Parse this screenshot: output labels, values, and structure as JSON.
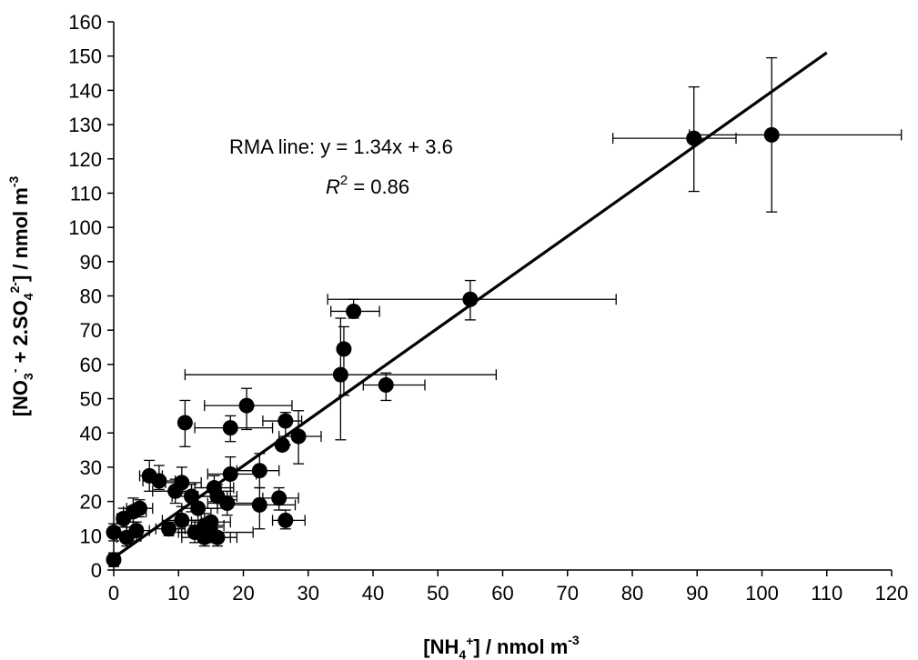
{
  "chart_data": {
    "type": "scatter",
    "xlabel": {
      "prefix": "[NH",
      "sub": "4",
      "sup": "+",
      "suffix": "] / nmol m",
      "unit_sup": "-3"
    },
    "ylabel": {
      "p1": "[NO",
      "sub1": "3",
      "sup1": "-",
      "p2": " + 2.SO",
      "sub2": "4",
      "sup2": "2-",
      "p3": "] / nmol m",
      "unit_sup": "-3"
    },
    "xlim": [
      0,
      120
    ],
    "ylim": [
      0,
      160
    ],
    "x_ticks": [
      "0",
      "10",
      "20",
      "30",
      "40",
      "50",
      "60",
      "70",
      "80",
      "90",
      "100",
      "110",
      "120"
    ],
    "y_ticks": [
      "0",
      "10",
      "20",
      "30",
      "40",
      "50",
      "60",
      "70",
      "80",
      "90",
      "100",
      "110",
      "120",
      "130",
      "140",
      "150",
      "160"
    ],
    "grid": false,
    "annotation": {
      "line1": "RMA line:  y = 1.34x + 3.6",
      "r_var": "R",
      "r_sup": "2",
      "r_rest": " = 0.86"
    },
    "fit_line": {
      "slope": 1.34,
      "intercept": 3.6,
      "x_range": [
        0,
        110
      ]
    },
    "points": [
      {
        "x": 101.5,
        "y": 127.0,
        "xerr": [
          88.8,
          121.5
        ],
        "yerr": [
          104.5,
          149.5
        ]
      },
      {
        "x": 89.5,
        "y": 126.0,
        "xerr": [
          77.0,
          96.0
        ],
        "yerr": [
          110.5,
          141.0
        ]
      },
      {
        "x": 55.0,
        "y": 79.0,
        "xerr": [
          33.0,
          77.5
        ],
        "yerr": [
          73.0,
          84.5
        ]
      },
      {
        "x": 37.0,
        "y": 75.5,
        "xerr": [
          33.5,
          41.0
        ],
        "yerr": [
          73.5,
          79.0
        ]
      },
      {
        "x": 35.5,
        "y": 64.5,
        "xerr": null,
        "yerr": [
          51.0,
          71.0
        ]
      },
      {
        "x": 35.0,
        "y": 57.0,
        "xerr": [
          11.0,
          59.0
        ],
        "yerr": [
          38.0,
          73.5
        ]
      },
      {
        "x": 42.0,
        "y": 54.0,
        "xerr": [
          38.5,
          48.0
        ],
        "yerr": [
          49.5,
          57.5
        ]
      },
      {
        "x": 20.5,
        "y": 48.0,
        "xerr": [
          14.0,
          27.5
        ],
        "yerr": [
          41.0,
          53.0
        ]
      },
      {
        "x": 11.0,
        "y": 43.0,
        "xerr": null,
        "yerr": [
          36.0,
          49.5
        ]
      },
      {
        "x": 26.5,
        "y": 43.5,
        "xerr": [
          23.0,
          29.0
        ],
        "yerr": [
          36.5,
          46.0
        ]
      },
      {
        "x": 18.0,
        "y": 41.5,
        "xerr": [
          12.5,
          24.5
        ],
        "yerr": [
          37.5,
          45.0
        ]
      },
      {
        "x": 28.5,
        "y": 39.0,
        "xerr": [
          25.5,
          32.0
        ],
        "yerr": [
          31.0,
          46.5
        ]
      },
      {
        "x": 26.0,
        "y": 36.5,
        "xerr": null,
        "yerr": null
      },
      {
        "x": 22.5,
        "y": 29.0,
        "xerr": [
          19.0,
          25.5
        ],
        "yerr": [
          24.0,
          34.0
        ]
      },
      {
        "x": 18.0,
        "y": 28.0,
        "xerr": [
          14.5,
          22.0
        ],
        "yerr": [
          20.5,
          33.0
        ]
      },
      {
        "x": 5.5,
        "y": 27.5,
        "xerr": [
          4.0,
          7.5
        ],
        "yerr": [
          23.0,
          32.0
        ]
      },
      {
        "x": 7.0,
        "y": 26.0,
        "xerr": [
          4.5,
          9.5
        ],
        "yerr": [
          23.5,
          30.5
        ]
      },
      {
        "x": 10.5,
        "y": 25.5,
        "xerr": [
          8.0,
          13.5
        ],
        "yerr": [
          22.5,
          30.0
        ]
      },
      {
        "x": 15.5,
        "y": 24.0,
        "xerr": [
          12.5,
          18.5
        ],
        "yerr": [
          20.0,
          27.5
        ]
      },
      {
        "x": 9.5,
        "y": 23.0,
        "xerr": [
          6.0,
          12.0
        ],
        "yerr": [
          19.5,
          26.5
        ]
      },
      {
        "x": 12.0,
        "y": 21.5,
        "xerr": [
          9.0,
          15.5
        ],
        "yerr": [
          17.0,
          25.0
        ]
      },
      {
        "x": 16.0,
        "y": 21.5,
        "xerr": [
          13.0,
          19.0
        ],
        "yerr": [
          18.0,
          25.0
        ]
      },
      {
        "x": 25.5,
        "y": 21.0,
        "xerr": [
          23.0,
          28.5
        ],
        "yerr": [
          17.5,
          24.0
        ]
      },
      {
        "x": 17.5,
        "y": 19.5,
        "xerr": [
          14.5,
          22.0
        ],
        "yerr": [
          16.0,
          23.0
        ]
      },
      {
        "x": 22.5,
        "y": 19.0,
        "xerr": [
          17.5,
          28.0
        ],
        "yerr": [
          12.0,
          24.0
        ]
      },
      {
        "x": 13.0,
        "y": 18.0,
        "xerr": [
          10.5,
          16.0
        ],
        "yerr": [
          14.5,
          21.5
        ]
      },
      {
        "x": 4.0,
        "y": 18.0,
        "xerr": [
          2.0,
          6.0
        ],
        "yerr": [
          15.5,
          20.5
        ]
      },
      {
        "x": 3.0,
        "y": 17.0,
        "xerr": [
          1.5,
          5.0
        ],
        "yerr": [
          14.0,
          21.0
        ]
      },
      {
        "x": 1.5,
        "y": 15.0,
        "xerr": [
          0.5,
          3.0
        ],
        "yerr": [
          12.5,
          18.0
        ]
      },
      {
        "x": 10.5,
        "y": 14.5,
        "xerr": [
          7.5,
          13.5
        ],
        "yerr": [
          11.0,
          18.5
        ]
      },
      {
        "x": 15.0,
        "y": 14.0,
        "xerr": [
          12.0,
          18.0
        ],
        "yerr": [
          10.5,
          18.0
        ]
      },
      {
        "x": 26.5,
        "y": 14.5,
        "xerr": [
          24.5,
          29.5
        ],
        "yerr": [
          12.0,
          17.5
        ]
      },
      {
        "x": 14.0,
        "y": 13.0,
        "xerr": [
          11.0,
          17.0
        ],
        "yerr": [
          9.5,
          16.5
        ]
      },
      {
        "x": 3.5,
        "y": 11.5,
        "xerr": [
          2.0,
          5.5
        ],
        "yerr": [
          8.5,
          14.0
        ]
      },
      {
        "x": 8.5,
        "y": 12.0,
        "xerr": [
          6.5,
          11.0
        ],
        "yerr": [
          10.0,
          14.0
        ]
      },
      {
        "x": 12.5,
        "y": 11.0,
        "xerr": [
          10.0,
          15.0
        ],
        "yerr": [
          8.0,
          14.5
        ]
      },
      {
        "x": 0.0,
        "y": 11.0,
        "xerr": null,
        "yerr": [
          8.5,
          13.5
        ]
      },
      {
        "x": 15.0,
        "y": 11.0,
        "xerr": [
          10.5,
          21.5
        ],
        "yerr": [
          8.0,
          14.5
        ]
      },
      {
        "x": 2.0,
        "y": 9.5,
        "xerr": [
          0.5,
          3.5
        ],
        "yerr": [
          7.0,
          12.5
        ]
      },
      {
        "x": 14.0,
        "y": 9.5,
        "xerr": [
          10.5,
          18.0
        ],
        "yerr": [
          7.0,
          12.5
        ]
      },
      {
        "x": 16.0,
        "y": 9.5,
        "xerr": [
          13.0,
          19.0
        ],
        "yerr": [
          7.0,
          12.5
        ]
      },
      {
        "x": 0.0,
        "y": 3.0,
        "xerr": null,
        "yerr": [
          1.0,
          5.0
        ]
      }
    ]
  }
}
